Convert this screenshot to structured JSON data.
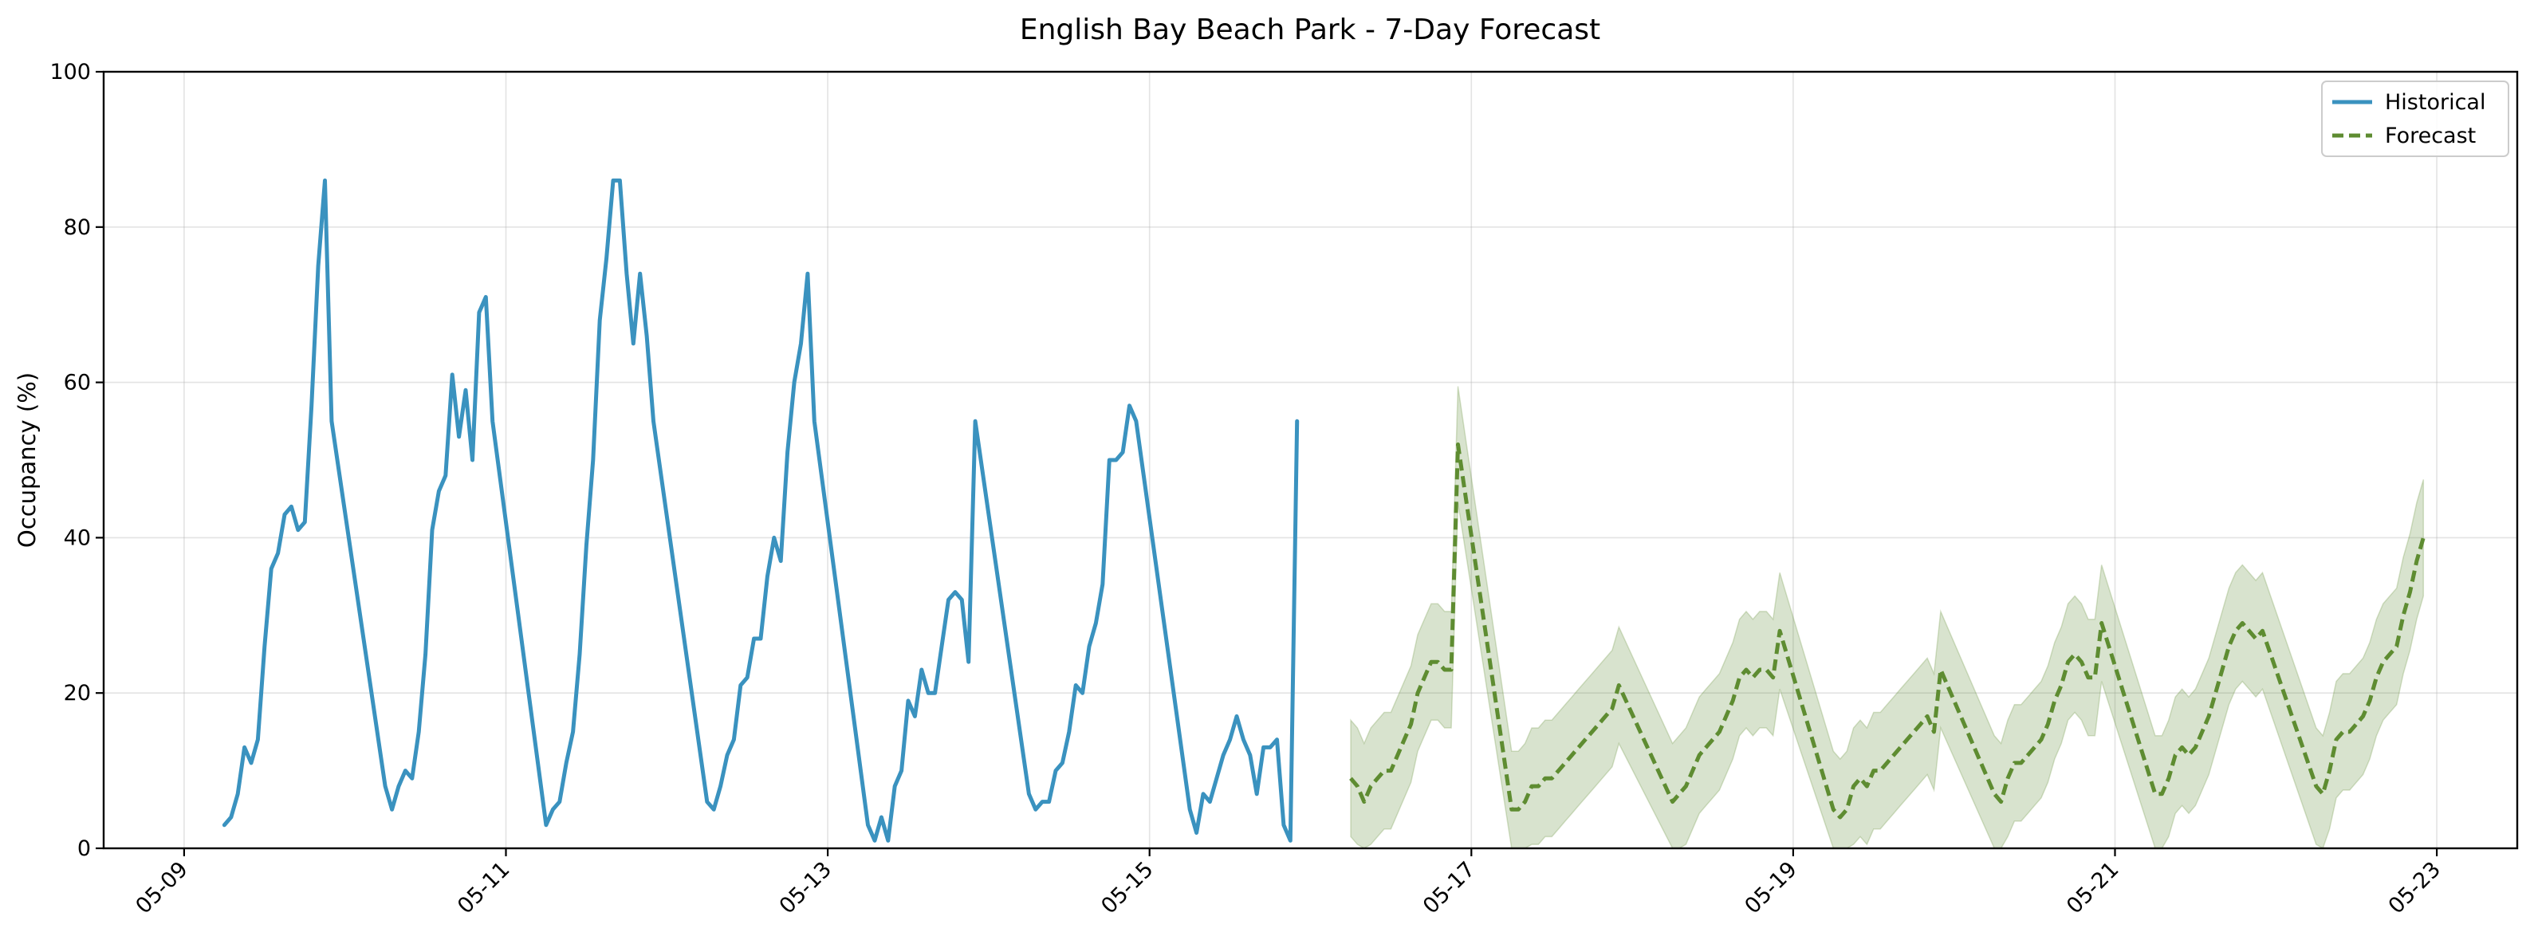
{
  "chart_data": {
    "type": "line",
    "title": "English Bay Beach Park - 7-Day Forecast",
    "xlabel": "",
    "ylabel": "Occupancy (%)",
    "ylim": [
      0,
      100
    ],
    "xlim": [
      "2025-05-08T12:00",
      "2025-05-23T12:00"
    ],
    "grid": true,
    "legend_position": "top-right",
    "x_ticks": [
      "05-09",
      "05-11",
      "05-13",
      "05-15",
      "05-17",
      "05-19",
      "05-21",
      "05-23"
    ],
    "y_ticks": [
      0,
      20,
      40,
      60,
      80,
      100
    ],
    "colors": {
      "historical": "#3a92bf",
      "forecast": "#5e8c31",
      "band": "#5e8c31"
    },
    "series": [
      {
        "name": "Historical",
        "style": "solid",
        "points": [
          [
            "2025-05-09T06:00",
            3
          ],
          [
            "2025-05-09T07:00",
            4
          ],
          [
            "2025-05-09T08:00",
            7
          ],
          [
            "2025-05-09T09:00",
            13
          ],
          [
            "2025-05-09T10:00",
            11
          ],
          [
            "2025-05-09T11:00",
            14
          ],
          [
            "2025-05-09T12:00",
            26
          ],
          [
            "2025-05-09T13:00",
            36
          ],
          [
            "2025-05-09T14:00",
            38
          ],
          [
            "2025-05-09T15:00",
            43
          ],
          [
            "2025-05-09T16:00",
            44
          ],
          [
            "2025-05-09T17:00",
            41
          ],
          [
            "2025-05-09T18:00",
            42
          ],
          [
            "2025-05-09T19:00",
            57
          ],
          [
            "2025-05-09T20:00",
            75
          ],
          [
            "2025-05-09T21:00",
            86
          ],
          [
            "2025-05-09T22:00",
            55
          ],
          [
            "2025-05-10T06:00",
            8
          ],
          [
            "2025-05-10T07:00",
            5
          ],
          [
            "2025-05-10T08:00",
            8
          ],
          [
            "2025-05-10T09:00",
            10
          ],
          [
            "2025-05-10T10:00",
            9
          ],
          [
            "2025-05-10T11:00",
            15
          ],
          [
            "2025-05-10T12:00",
            25
          ],
          [
            "2025-05-10T13:00",
            41
          ],
          [
            "2025-05-10T14:00",
            46
          ],
          [
            "2025-05-10T15:00",
            48
          ],
          [
            "2025-05-10T16:00",
            61
          ],
          [
            "2025-05-10T17:00",
            53
          ],
          [
            "2025-05-10T18:00",
            59
          ],
          [
            "2025-05-10T19:00",
            50
          ],
          [
            "2025-05-10T20:00",
            69
          ],
          [
            "2025-05-10T21:00",
            71
          ],
          [
            "2025-05-10T22:00",
            55
          ],
          [
            "2025-05-11T06:00",
            3
          ],
          [
            "2025-05-11T07:00",
            5
          ],
          [
            "2025-05-11T08:00",
            6
          ],
          [
            "2025-05-11T09:00",
            11
          ],
          [
            "2025-05-11T10:00",
            15
          ],
          [
            "2025-05-11T11:00",
            25
          ],
          [
            "2025-05-11T12:00",
            39
          ],
          [
            "2025-05-11T13:00",
            50
          ],
          [
            "2025-05-11T14:00",
            68
          ],
          [
            "2025-05-11T15:00",
            76
          ],
          [
            "2025-05-11T16:00",
            86
          ],
          [
            "2025-05-11T17:00",
            86
          ],
          [
            "2025-05-11T18:00",
            74
          ],
          [
            "2025-05-11T19:00",
            65
          ],
          [
            "2025-05-11T20:00",
            74
          ],
          [
            "2025-05-11T21:00",
            66
          ],
          [
            "2025-05-11T22:00",
            55
          ],
          [
            "2025-05-12T06:00",
            6
          ],
          [
            "2025-05-12T07:00",
            5
          ],
          [
            "2025-05-12T08:00",
            8
          ],
          [
            "2025-05-12T09:00",
            12
          ],
          [
            "2025-05-12T10:00",
            14
          ],
          [
            "2025-05-12T11:00",
            21
          ],
          [
            "2025-05-12T12:00",
            22
          ],
          [
            "2025-05-12T13:00",
            27
          ],
          [
            "2025-05-12T14:00",
            27
          ],
          [
            "2025-05-12T15:00",
            35
          ],
          [
            "2025-05-12T16:00",
            40
          ],
          [
            "2025-05-12T17:00",
            37
          ],
          [
            "2025-05-12T18:00",
            51
          ],
          [
            "2025-05-12T19:00",
            60
          ],
          [
            "2025-05-12T20:00",
            65
          ],
          [
            "2025-05-12T21:00",
            74
          ],
          [
            "2025-05-12T22:00",
            55
          ],
          [
            "2025-05-13T06:00",
            3
          ],
          [
            "2025-05-13T07:00",
            1
          ],
          [
            "2025-05-13T08:00",
            4
          ],
          [
            "2025-05-13T09:00",
            1
          ],
          [
            "2025-05-13T10:00",
            8
          ],
          [
            "2025-05-13T11:00",
            10
          ],
          [
            "2025-05-13T12:00",
            19
          ],
          [
            "2025-05-13T13:00",
            17
          ],
          [
            "2025-05-13T14:00",
            23
          ],
          [
            "2025-05-13T15:00",
            20
          ],
          [
            "2025-05-13T16:00",
            20
          ],
          [
            "2025-05-13T17:00",
            26
          ],
          [
            "2025-05-13T18:00",
            32
          ],
          [
            "2025-05-13T19:00",
            33
          ],
          [
            "2025-05-13T20:00",
            32
          ],
          [
            "2025-05-13T21:00",
            24
          ],
          [
            "2025-05-13T22:00",
            55
          ],
          [
            "2025-05-14T06:00",
            7
          ],
          [
            "2025-05-14T07:00",
            5
          ],
          [
            "2025-05-14T08:00",
            6
          ],
          [
            "2025-05-14T09:00",
            6
          ],
          [
            "2025-05-14T10:00",
            10
          ],
          [
            "2025-05-14T11:00",
            11
          ],
          [
            "2025-05-14T12:00",
            15
          ],
          [
            "2025-05-14T13:00",
            21
          ],
          [
            "2025-05-14T14:00",
            20
          ],
          [
            "2025-05-14T15:00",
            26
          ],
          [
            "2025-05-14T16:00",
            29
          ],
          [
            "2025-05-14T17:00",
            34
          ],
          [
            "2025-05-14T18:00",
            50
          ],
          [
            "2025-05-14T19:00",
            50
          ],
          [
            "2025-05-14T20:00",
            51
          ],
          [
            "2025-05-14T21:00",
            57
          ],
          [
            "2025-05-14T22:00",
            55
          ],
          [
            "2025-05-15T06:00",
            5
          ],
          [
            "2025-05-15T07:00",
            2
          ],
          [
            "2025-05-15T08:00",
            7
          ],
          [
            "2025-05-15T09:00",
            6
          ],
          [
            "2025-05-15T10:00",
            9
          ],
          [
            "2025-05-15T11:00",
            12
          ],
          [
            "2025-05-15T12:00",
            14
          ],
          [
            "2025-05-15T13:00",
            17
          ],
          [
            "2025-05-15T14:00",
            14
          ],
          [
            "2025-05-15T15:00",
            12
          ],
          [
            "2025-05-15T16:00",
            7
          ],
          [
            "2025-05-15T17:00",
            13
          ],
          [
            "2025-05-15T18:00",
            13
          ],
          [
            "2025-05-15T19:00",
            14
          ],
          [
            "2025-05-15T20:00",
            3
          ],
          [
            "2025-05-15T21:00",
            1
          ],
          [
            "2025-05-15T22:00",
            55
          ]
        ]
      },
      {
        "name": "Forecast",
        "style": "dashed",
        "points": [
          [
            "2025-05-16T06:00",
            9
          ],
          [
            "2025-05-16T07:00",
            8
          ],
          [
            "2025-05-16T08:00",
            6
          ],
          [
            "2025-05-16T09:00",
            8
          ],
          [
            "2025-05-16T10:00",
            9
          ],
          [
            "2025-05-16T11:00",
            10
          ],
          [
            "2025-05-16T12:00",
            10
          ],
          [
            "2025-05-16T13:00",
            12
          ],
          [
            "2025-05-16T14:00",
            14
          ],
          [
            "2025-05-16T15:00",
            16
          ],
          [
            "2025-05-16T16:00",
            20
          ],
          [
            "2025-05-16T17:00",
            22
          ],
          [
            "2025-05-16T18:00",
            24
          ],
          [
            "2025-05-16T19:00",
            24
          ],
          [
            "2025-05-16T20:00",
            23
          ],
          [
            "2025-05-16T21:00",
            23
          ],
          [
            "2025-05-16T22:00",
            52
          ],
          [
            "2025-05-17T06:00",
            5
          ],
          [
            "2025-05-17T07:00",
            5
          ],
          [
            "2025-05-17T08:00",
            6
          ],
          [
            "2025-05-17T09:00",
            8
          ],
          [
            "2025-05-17T10:00",
            8
          ],
          [
            "2025-05-17T11:00",
            9
          ],
          [
            "2025-05-17T12:00",
            9
          ],
          [
            "2025-05-17T13:00",
            10
          ],
          [
            "2025-05-17T14:00",
            11
          ],
          [
            "2025-05-17T15:00",
            12
          ],
          [
            "2025-05-17T16:00",
            13
          ],
          [
            "2025-05-17T17:00",
            14
          ],
          [
            "2025-05-17T18:00",
            15
          ],
          [
            "2025-05-17T19:00",
            16
          ],
          [
            "2025-05-17T20:00",
            17
          ],
          [
            "2025-05-17T21:00",
            18
          ],
          [
            "2025-05-17T22:00",
            21
          ],
          [
            "2025-05-18T06:00",
            6
          ],
          [
            "2025-05-18T07:00",
            7
          ],
          [
            "2025-05-18T08:00",
            8
          ],
          [
            "2025-05-18T09:00",
            10
          ],
          [
            "2025-05-18T10:00",
            12
          ],
          [
            "2025-05-18T11:00",
            13
          ],
          [
            "2025-05-18T12:00",
            14
          ],
          [
            "2025-05-18T13:00",
            15
          ],
          [
            "2025-05-18T14:00",
            17
          ],
          [
            "2025-05-18T15:00",
            19
          ],
          [
            "2025-05-18T16:00",
            22
          ],
          [
            "2025-05-18T17:00",
            23
          ],
          [
            "2025-05-18T18:00",
            22
          ],
          [
            "2025-05-18T19:00",
            23
          ],
          [
            "2025-05-18T20:00",
            23
          ],
          [
            "2025-05-18T21:00",
            22
          ],
          [
            "2025-05-18T22:00",
            28
          ],
          [
            "2025-05-19T06:00",
            5
          ],
          [
            "2025-05-19T07:00",
            4
          ],
          [
            "2025-05-19T08:00",
            5
          ],
          [
            "2025-05-19T09:00",
            8
          ],
          [
            "2025-05-19T10:00",
            9
          ],
          [
            "2025-05-19T11:00",
            8
          ],
          [
            "2025-05-19T12:00",
            10
          ],
          [
            "2025-05-19T13:00",
            10
          ],
          [
            "2025-05-19T14:00",
            11
          ],
          [
            "2025-05-19T15:00",
            12
          ],
          [
            "2025-05-19T16:00",
            13
          ],
          [
            "2025-05-19T17:00",
            14
          ],
          [
            "2025-05-19T18:00",
            15
          ],
          [
            "2025-05-19T19:00",
            16
          ],
          [
            "2025-05-19T20:00",
            17
          ],
          [
            "2025-05-19T21:00",
            15
          ],
          [
            "2025-05-19T22:00",
            23
          ],
          [
            "2025-05-20T06:00",
            7
          ],
          [
            "2025-05-20T07:00",
            6
          ],
          [
            "2025-05-20T08:00",
            9
          ],
          [
            "2025-05-20T09:00",
            11
          ],
          [
            "2025-05-20T10:00",
            11
          ],
          [
            "2025-05-20T11:00",
            12
          ],
          [
            "2025-05-20T12:00",
            13
          ],
          [
            "2025-05-20T13:00",
            14
          ],
          [
            "2025-05-20T14:00",
            16
          ],
          [
            "2025-05-20T15:00",
            19
          ],
          [
            "2025-05-20T16:00",
            21
          ],
          [
            "2025-05-20T17:00",
            24
          ],
          [
            "2025-05-20T18:00",
            25
          ],
          [
            "2025-05-20T19:00",
            24
          ],
          [
            "2025-05-20T20:00",
            22
          ],
          [
            "2025-05-20T21:00",
            22
          ],
          [
            "2025-05-20T22:00",
            29
          ],
          [
            "2025-05-21T06:00",
            7
          ],
          [
            "2025-05-21T07:00",
            7
          ],
          [
            "2025-05-21T08:00",
            9
          ],
          [
            "2025-05-21T09:00",
            12
          ],
          [
            "2025-05-21T10:00",
            13
          ],
          [
            "2025-05-21T11:00",
            12
          ],
          [
            "2025-05-21T12:00",
            13
          ],
          [
            "2025-05-21T13:00",
            15
          ],
          [
            "2025-05-21T14:00",
            17
          ],
          [
            "2025-05-21T15:00",
            20
          ],
          [
            "2025-05-21T16:00",
            23
          ],
          [
            "2025-05-21T17:00",
            26
          ],
          [
            "2025-05-21T18:00",
            28
          ],
          [
            "2025-05-21T19:00",
            29
          ],
          [
            "2025-05-21T20:00",
            28
          ],
          [
            "2025-05-21T21:00",
            27
          ],
          [
            "2025-05-21T22:00",
            28
          ],
          [
            "2025-05-22T06:00",
            8
          ],
          [
            "2025-05-22T07:00",
            7
          ],
          [
            "2025-05-22T08:00",
            10
          ],
          [
            "2025-05-22T09:00",
            14
          ],
          [
            "2025-05-22T10:00",
            15
          ],
          [
            "2025-05-22T11:00",
            15
          ],
          [
            "2025-05-22T12:00",
            16
          ],
          [
            "2025-05-22T13:00",
            17
          ],
          [
            "2025-05-22T14:00",
            19
          ],
          [
            "2025-05-22T15:00",
            22
          ],
          [
            "2025-05-22T16:00",
            24
          ],
          [
            "2025-05-22T17:00",
            25
          ],
          [
            "2025-05-22T18:00",
            26
          ],
          [
            "2025-05-22T19:00",
            30
          ],
          [
            "2025-05-22T20:00",
            33
          ],
          [
            "2025-05-22T21:00",
            37
          ],
          [
            "2025-05-22T22:00",
            40
          ]
        ],
        "band_width": 7.5
      }
    ]
  }
}
